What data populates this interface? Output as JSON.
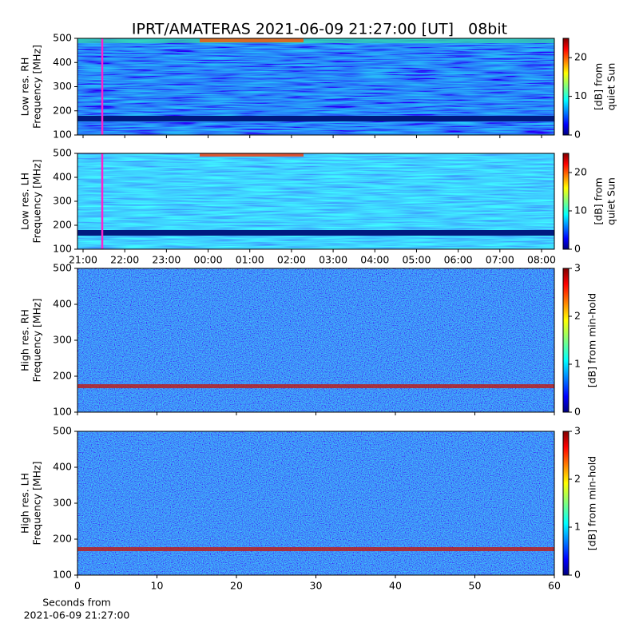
{
  "chart_data": [
    {
      "type": "heatmap",
      "title": "IPRT/AMATERAS 2021-06-09 21:27:00 [UT]   08bit",
      "ylabel": [
        "Low res. RH",
        "Frequency [MHz]"
      ],
      "ylim": [
        100,
        500
      ],
      "yticks": [
        100,
        200,
        300,
        400,
        500
      ],
      "colorbar": {
        "label": [
          "[dB] from",
          "quiet Sun"
        ],
        "lim": [
          0,
          25
        ],
        "ticks": [
          0,
          10,
          20
        ]
      }
    },
    {
      "type": "heatmap",
      "ylabel": [
        "Low res. LH",
        "Frequency [MHz]"
      ],
      "ylim": [
        100,
        500
      ],
      "yticks": [
        100,
        200,
        300,
        400,
        500
      ],
      "xticks": [
        "21:00",
        "22:00",
        "23:00",
        "00:00",
        "01:00",
        "02:00",
        "03:00",
        "04:00",
        "05:00",
        "06:00",
        "07:00",
        "08:00"
      ],
      "colorbar": {
        "label": [
          "[dB] from",
          "quiet Sun"
        ],
        "lim": [
          0,
          25
        ],
        "ticks": [
          0,
          10,
          20
        ]
      }
    },
    {
      "type": "heatmap",
      "ylabel": [
        "High res. RH",
        "Frequency [MHz]"
      ],
      "ylim": [
        100,
        500
      ],
      "yticks": [
        100,
        200,
        300,
        400,
        500
      ],
      "xlim": [
        0,
        60
      ],
      "colorbar": {
        "label": [
          "[dB] from min-hold"
        ],
        "lim": [
          0,
          3
        ],
        "ticks": [
          0,
          1,
          2,
          3
        ]
      }
    },
    {
      "type": "heatmap",
      "ylabel": [
        "High res. LH",
        "Frequency [MHz]"
      ],
      "ylim": [
        100,
        500
      ],
      "yticks": [
        100,
        200,
        300,
        400,
        500
      ],
      "xlim": [
        0,
        60
      ],
      "xticks": [
        0,
        10,
        20,
        30,
        40,
        50,
        60
      ],
      "xlabel": [
        "Seconds from",
        "2021-06-09 21:27:00"
      ],
      "colorbar": {
        "label": [
          "[dB] from min-hold"
        ],
        "lim": [
          0,
          3
        ],
        "ticks": [
          0,
          1,
          2,
          3
        ]
      }
    }
  ]
}
